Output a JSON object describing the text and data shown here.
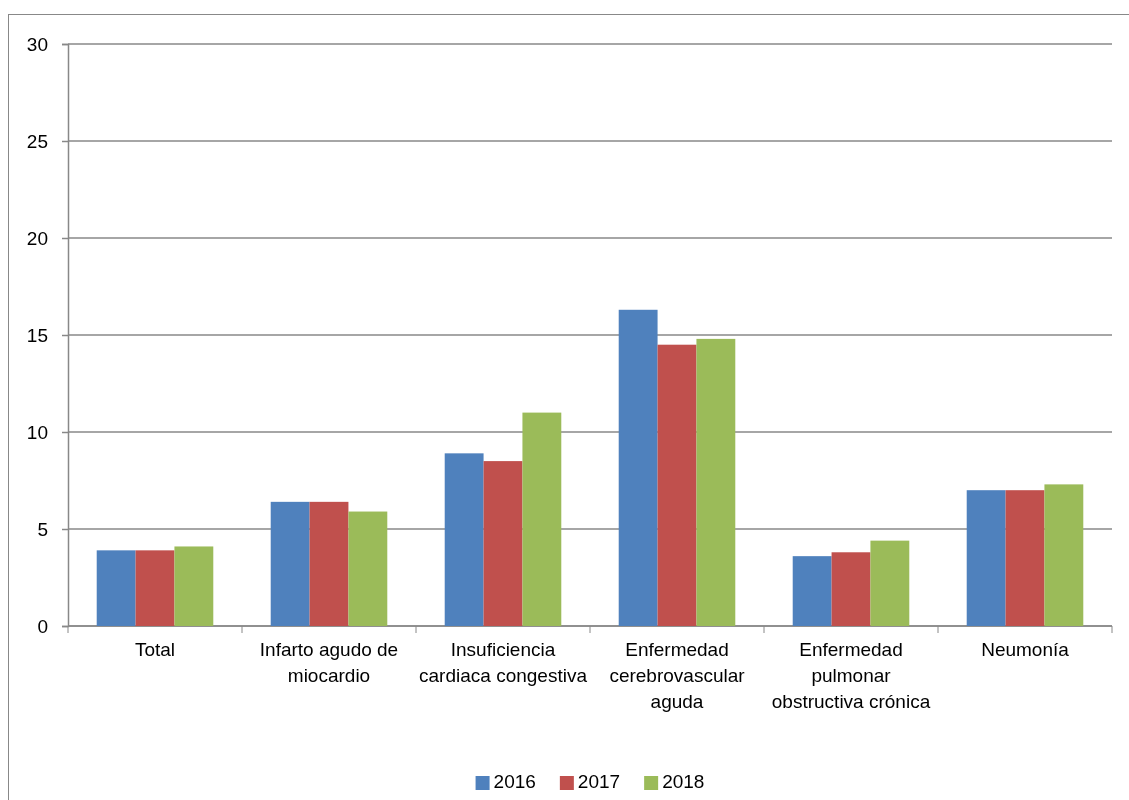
{
  "chart_data": {
    "type": "bar",
    "categories": [
      "Total",
      "Infarto agudo de miocardio",
      "Insuficiencia cardiaca congestiva",
      "Enfermedad cerebrovascular aguda",
      "Enfermedad pulmonar obstructiva crónica",
      "Neumonía"
    ],
    "series": [
      {
        "name": "2016",
        "color": "#4f81bd",
        "values": [
          3.9,
          6.4,
          8.9,
          16.3,
          3.6,
          7.0
        ]
      },
      {
        "name": "2017",
        "color": "#c0504d",
        "values": [
          3.9,
          6.4,
          8.5,
          14.5,
          3.8,
          7.0
        ]
      },
      {
        "name": "2018",
        "color": "#9bbb59",
        "values": [
          4.1,
          5.9,
          11.0,
          14.8,
          4.4,
          7.3
        ]
      }
    ],
    "ylim": [
      0,
      30
    ],
    "yticks": [
      0,
      5,
      10,
      15,
      20,
      25,
      30
    ],
    "grid": "y",
    "legend": "bottom"
  }
}
